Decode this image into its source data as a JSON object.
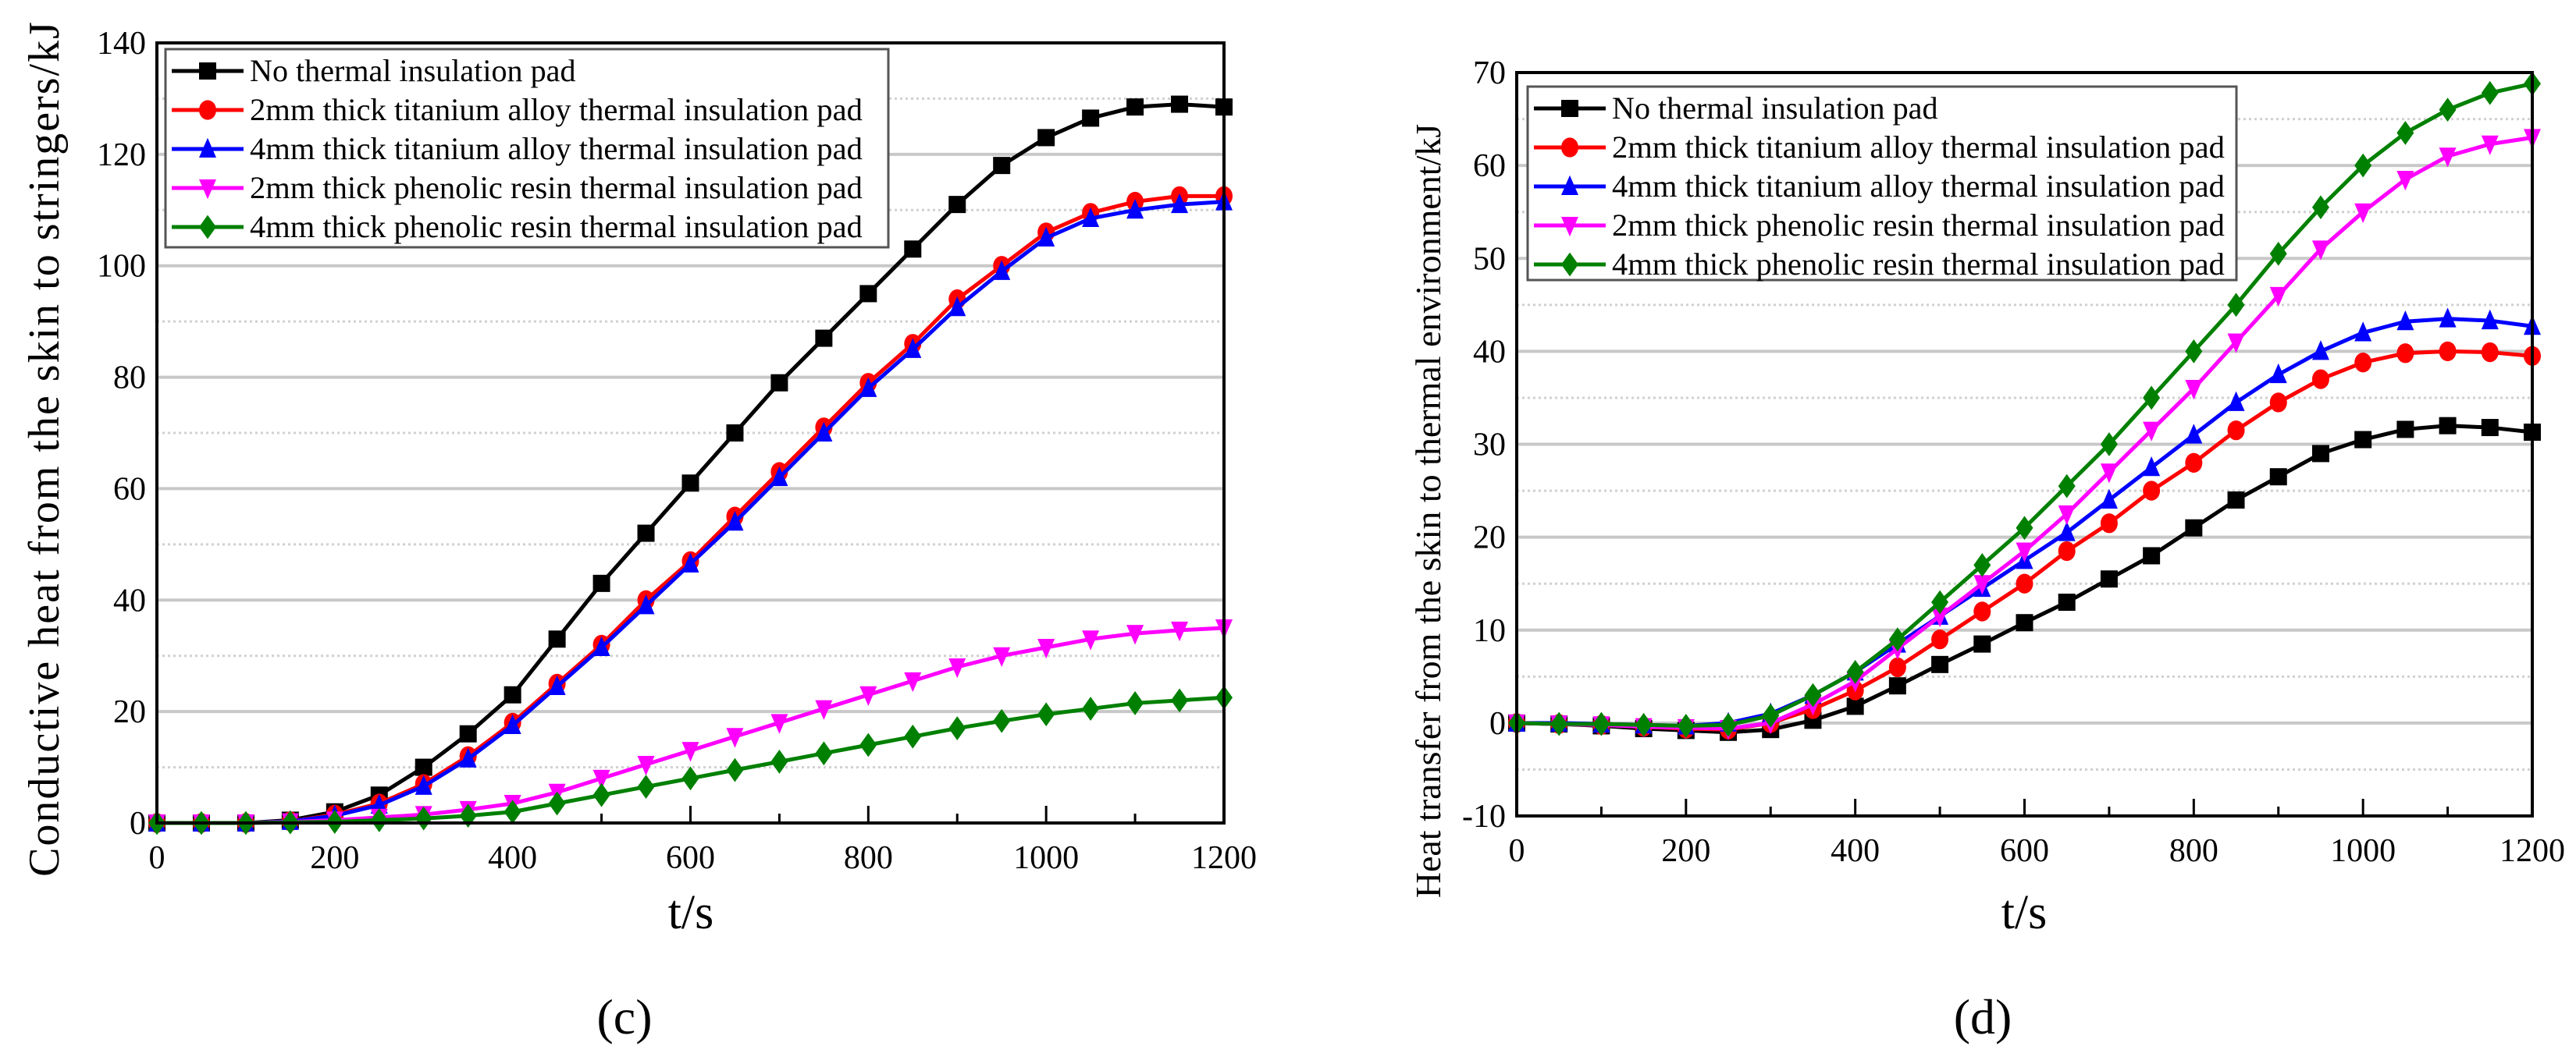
{
  "legend": [
    "No thermal insulation pad",
    "2mm thick titanium alloy thermal insulation pad",
    "4mm thick titanium alloy thermal insulation pad",
    "2mm thick phenolic resin thermal insulation pad",
    "4mm thick phenolic resin thermal insulation pad"
  ],
  "chart_data": [
    {
      "type": "line",
      "panel_label": "(c)",
      "xlabel": "t/s",
      "ylabel": "Conductive heat from the skin to stringers/kJ",
      "xlim": [
        0,
        1200
      ],
      "ylim": [
        0,
        140
      ],
      "xticks": [
        0,
        200,
        400,
        600,
        800,
        1000,
        1200
      ],
      "yticks": [
        0,
        20,
        40,
        60,
        80,
        100,
        120,
        140
      ],
      "grid": true,
      "legend_position": "top-left",
      "x": [
        0,
        50,
        100,
        150,
        200,
        250,
        300,
        350,
        400,
        450,
        500,
        550,
        600,
        650,
        700,
        750,
        800,
        850,
        900,
        950,
        1000,
        1050,
        1100,
        1150,
        1200
      ],
      "series": [
        {
          "name": "No thermal insulation pad",
          "color": "#000000",
          "marker": "square",
          "values": [
            0,
            0,
            0,
            0.5,
            2,
            5,
            10,
            16,
            23,
            33,
            43,
            52,
            61,
            70,
            79,
            87,
            95,
            103,
            111,
            118,
            123,
            126.5,
            128.5,
            129,
            128.5
          ]
        },
        {
          "name": "2mm thick titanium alloy thermal insulation pad",
          "color": "#ff0000",
          "marker": "circle",
          "values": [
            0,
            0,
            0,
            0.3,
            1.5,
            3.5,
            7,
            12,
            18,
            25,
            32,
            40,
            47,
            55,
            63,
            71,
            79,
            86,
            94,
            100,
            106,
            109.5,
            111.5,
            112.5,
            112.5
          ]
        },
        {
          "name": "4mm thick titanium alloy thermal insulation pad",
          "color": "#0000ff",
          "marker": "triangle-up",
          "values": [
            0,
            0,
            0,
            0.3,
            1.3,
            3.2,
            6.6,
            11.5,
            17.5,
            24.5,
            31.5,
            39,
            46.5,
            54,
            62,
            70,
            78,
            85,
            92.5,
            99,
            105,
            108.5,
            110,
            111,
            111.5
          ]
        },
        {
          "name": "2mm thick phenolic resin thermal insulation pad",
          "color": "#ff00ff",
          "marker": "triangle-down",
          "values": [
            0,
            0,
            0,
            0.2,
            0.5,
            1,
            1.5,
            2.4,
            3.5,
            5.5,
            8,
            10.5,
            13,
            15.5,
            18,
            20.5,
            23,
            25.5,
            28,
            30,
            31.5,
            33,
            34,
            34.6,
            35
          ]
        },
        {
          "name": "4mm thick phenolic resin thermal insulation pad",
          "color": "#008000",
          "marker": "diamond",
          "values": [
            0,
            0,
            0,
            0.1,
            0.2,
            0.5,
            0.8,
            1.3,
            2,
            3.5,
            5,
            6.5,
            8,
            9.5,
            11,
            12.5,
            14,
            15.5,
            17,
            18.3,
            19.5,
            20.5,
            21.5,
            22,
            22.5
          ]
        }
      ]
    },
    {
      "type": "line",
      "panel_label": "(d)",
      "xlabel": "t/s",
      "ylabel": "Heat transfer from the skin to thermal environment/kJ",
      "xlim": [
        0,
        1200
      ],
      "ylim": [
        -10,
        70
      ],
      "xticks": [
        0,
        200,
        400,
        600,
        800,
        1000,
        1200
      ],
      "yticks": [
        -10,
        0,
        10,
        20,
        30,
        40,
        50,
        60,
        70
      ],
      "grid": true,
      "legend_position": "top-left",
      "x": [
        0,
        50,
        100,
        150,
        200,
        250,
        300,
        350,
        400,
        450,
        500,
        550,
        600,
        650,
        700,
        750,
        800,
        850,
        900,
        950,
        1000,
        1050,
        1100,
        1150,
        1200
      ],
      "series": [
        {
          "name": "No thermal insulation pad",
          "color": "#000000",
          "marker": "square",
          "values": [
            0,
            -0.1,
            -0.3,
            -0.6,
            -0.8,
            -1,
            -0.7,
            0.3,
            1.8,
            4,
            6.3,
            8.5,
            10.8,
            13,
            15.5,
            18,
            21,
            24,
            26.5,
            29,
            30.5,
            31.6,
            32,
            31.8,
            31.3
          ]
        },
        {
          "name": "2mm thick titanium alloy thermal insulation pad",
          "color": "#ff0000",
          "marker": "circle",
          "values": [
            0,
            -0.1,
            -0.2,
            -0.4,
            -0.6,
            -0.7,
            0,
            1.5,
            3.5,
            6,
            9,
            12,
            15,
            18.5,
            21.5,
            25,
            28,
            31.5,
            34.5,
            37,
            38.8,
            39.8,
            40,
            39.9,
            39.5
          ]
        },
        {
          "name": "4mm thick titanium alloy thermal insulation pad",
          "color": "#0000ff",
          "marker": "triangle-up",
          "values": [
            0,
            0,
            -0.1,
            -0.2,
            -0.3,
            0,
            1,
            3,
            5.5,
            8.5,
            11.5,
            14.5,
            17.5,
            20.5,
            24,
            27.5,
            31,
            34.5,
            37.5,
            40,
            42,
            43.2,
            43.5,
            43.3,
            42.7
          ]
        },
        {
          "name": "2mm thick phenolic resin thermal insulation pad",
          "color": "#ff00ff",
          "marker": "triangle-down",
          "values": [
            0,
            -0.1,
            -0.2,
            -0.4,
            -0.5,
            -0.6,
            0,
            2,
            4.5,
            8,
            11.5,
            15,
            18.5,
            22.5,
            27,
            31.5,
            36,
            41,
            46,
            51,
            55,
            58.5,
            61,
            62.3,
            63
          ]
        },
        {
          "name": "4mm thick phenolic resin thermal insulation pad",
          "color": "#008000",
          "marker": "diamond",
          "values": [
            0,
            -0.1,
            -0.1,
            -0.2,
            -0.3,
            -0.2,
            0.8,
            3,
            5.5,
            9,
            13,
            17,
            21,
            25.5,
            30,
            35,
            40,
            45,
            50.5,
            55.5,
            60,
            63.5,
            66,
            67.8,
            68.8
          ]
        }
      ]
    }
  ]
}
